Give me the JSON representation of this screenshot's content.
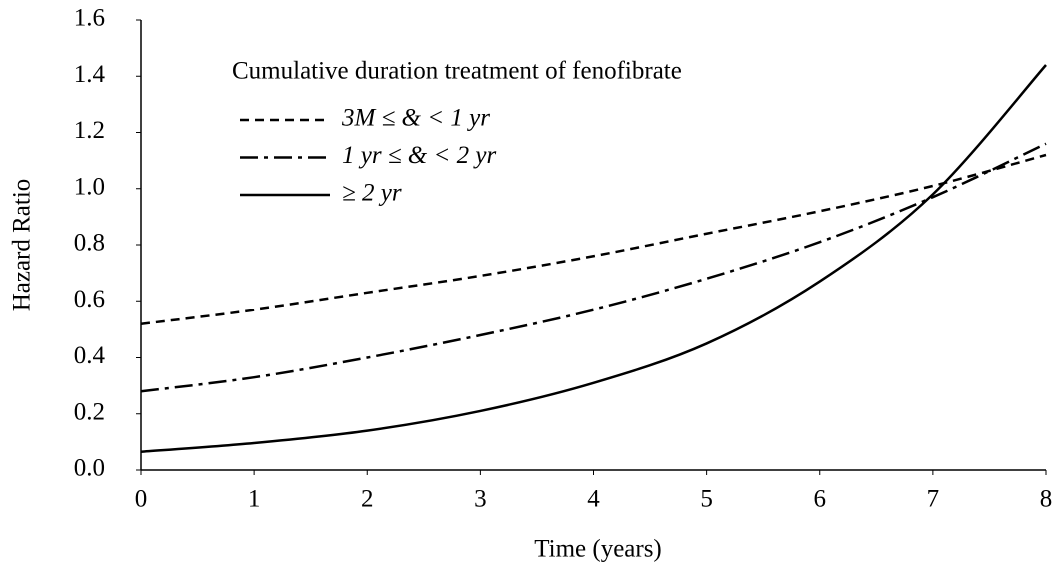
{
  "chart_data": {
    "type": "line",
    "x_label": "Time (years)",
    "y_label": "Hazard Ratio",
    "x": [
      0,
      1,
      2,
      3,
      4,
      5,
      6,
      7,
      8
    ],
    "legend_title": "Cumulative duration treatment of fenofibrate",
    "legend": "upper left",
    "series": [
      {
        "name": "3M  ≤ & < 1 yr",
        "color": "#000000",
        "dash": "dashed",
        "values": [
          0.52,
          0.57,
          0.63,
          0.69,
          0.76,
          0.84,
          0.92,
          1.01,
          1.12
        ]
      },
      {
        "name": "1 yr ≤ & < 2 yr",
        "color": "#000000",
        "dash": "dashdot",
        "values": [
          0.28,
          0.33,
          0.4,
          0.48,
          0.57,
          0.68,
          0.81,
          0.97,
          1.16
        ]
      },
      {
        "name": "≥ 2 yr",
        "color": "#000000",
        "dash": "solid",
        "values": [
          0.065,
          0.096,
          0.14,
          0.21,
          0.31,
          0.45,
          0.67,
          0.98,
          1.44
        ]
      }
    ],
    "xlim": [
      0,
      8
    ],
    "xticks": [
      0,
      1,
      2,
      3,
      4,
      5,
      6,
      7,
      8
    ],
    "ylim": [
      0,
      1.6
    ],
    "yticks": [
      {
        "value": 0,
        "label": "0.0"
      },
      0.2,
      0.4,
      0.6,
      0.8,
      {
        "value": 1,
        "label": "1.0"
      },
      1.2,
      1.4,
      1.6
    ]
  }
}
